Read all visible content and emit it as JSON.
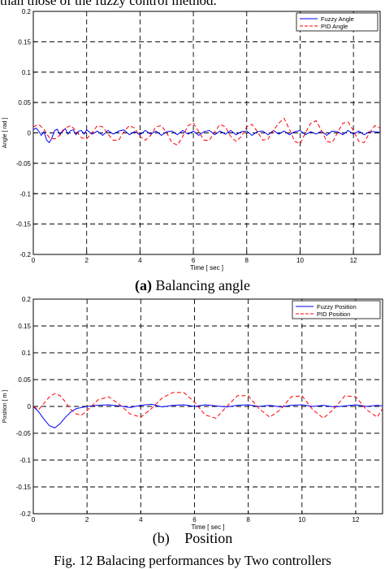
{
  "page": {
    "intro_text": "than those of the fuzzy control method.",
    "figure_caption": "Fig. 12 Balacing performances by Two controllers"
  },
  "colors": {
    "fuzzy": "#0000ff",
    "pid": "#ff0000",
    "grid": "#000000"
  },
  "chart_data": [
    {
      "type": "line",
      "caption_label": "(a)",
      "caption_text": "Balancing angle",
      "xlabel": "Time [ sec ]",
      "ylabel": "Angle [ rad ]",
      "xlim": [
        0,
        13
      ],
      "ylim": [
        -0.2,
        0.2
      ],
      "xticks": [
        0,
        2,
        4,
        6,
        8,
        10,
        12
      ],
      "yticks": [
        0.2,
        0.15,
        0.1,
        0.05,
        0,
        -0.05,
        -0.1,
        -0.15,
        -0.2
      ],
      "ytick_labels": [
        "0.2",
        "0.15",
        "0.1",
        "0.05",
        "0",
        "-0.05",
        "-0.1",
        "-0.15",
        "-0.2"
      ],
      "grid": true,
      "legend_position": "top-right",
      "series": [
        {
          "name": "Fuzzy Angle",
          "style": "solid",
          "x": [
            0,
            0.1,
            0.2,
            0.3,
            0.4,
            0.5,
            0.6,
            0.7,
            0.8,
            0.9,
            1.0,
            1.1,
            1.2,
            1.3,
            1.4,
            1.5,
            1.6,
            1.7,
            1.8,
            1.9,
            2.0,
            2.2,
            2.4,
            2.6,
            2.8,
            3.0,
            3.2,
            3.4,
            3.6,
            3.8,
            4.0,
            4.2,
            4.4,
            4.6,
            4.8,
            5.0,
            5.2,
            5.4,
            5.6,
            5.8,
            6.0,
            6.2,
            6.4,
            6.6,
            6.8,
            7.0,
            7.2,
            7.4,
            7.6,
            7.8,
            8.0,
            8.2,
            8.4,
            8.6,
            8.8,
            9.0,
            9.2,
            9.4,
            9.6,
            9.8,
            10.0,
            10.2,
            10.4,
            10.6,
            10.8,
            11.0,
            11.2,
            11.4,
            11.6,
            11.8,
            12.0,
            12.2,
            12.4,
            12.6,
            12.8,
            13.0
          ],
          "y": [
            0.005,
            0.008,
            0.003,
            -0.004,
            0.002,
            -0.012,
            -0.016,
            -0.008,
            0.004,
            0.006,
            -0.003,
            0.004,
            0.007,
            -0.002,
            0.004,
            0.005,
            -0.003,
            0.003,
            0.004,
            -0.002,
            0.005,
            -0.002,
            0.003,
            -0.004,
            0.004,
            -0.002,
            0.003,
            0.005,
            -0.003,
            0.002,
            -0.003,
            0.004,
            -0.002,
            0.003,
            -0.004,
            0.002,
            0.003,
            -0.003,
            0.004,
            -0.002,
            0.003,
            -0.004,
            0.002,
            0.004,
            -0.003,
            0.003,
            -0.002,
            0.004,
            -0.003,
            0.002,
            0.003,
            -0.004,
            0.002,
            0.003,
            -0.003,
            0.004,
            -0.002,
            0.003,
            -0.003,
            0.002,
            0.004,
            -0.003,
            0.002,
            -0.002,
            0.003,
            -0.004,
            0.003,
            0.002,
            -0.003,
            0.004,
            -0.002,
            0.003,
            -0.003,
            0.002,
            0.002,
            0.001
          ]
        },
        {
          "name": "PID Angle",
          "style": "dashed",
          "x": [
            0,
            0.2,
            0.4,
            0.6,
            0.8,
            1.0,
            1.2,
            1.4,
            1.6,
            1.8,
            2.0,
            2.2,
            2.4,
            2.6,
            2.8,
            3.0,
            3.2,
            3.4,
            3.6,
            3.8,
            4.0,
            4.2,
            4.4,
            4.6,
            4.8,
            5.0,
            5.2,
            5.4,
            5.6,
            5.8,
            6.0,
            6.2,
            6.4,
            6.6,
            6.8,
            7.0,
            7.2,
            7.4,
            7.6,
            7.8,
            8.0,
            8.2,
            8.4,
            8.6,
            8.8,
            9.0,
            9.2,
            9.4,
            9.6,
            9.8,
            10.0,
            10.2,
            10.4,
            10.6,
            10.8,
            11.0,
            11.2,
            11.4,
            11.6,
            11.8,
            12.0,
            12.2,
            12.4,
            12.6,
            12.8,
            13.0
          ],
          "y": [
            0.01,
            0.014,
            0.006,
            -0.008,
            -0.01,
            -0.004,
            0.008,
            0.012,
            0.004,
            -0.008,
            -0.01,
            0.0,
            0.012,
            0.01,
            -0.002,
            -0.012,
            -0.012,
            0.002,
            0.012,
            0.008,
            -0.006,
            -0.012,
            -0.004,
            0.01,
            0.012,
            0.0,
            -0.016,
            -0.02,
            -0.006,
            0.012,
            0.016,
            0.002,
            -0.012,
            -0.012,
            0.002,
            0.014,
            0.01,
            -0.006,
            -0.014,
            -0.006,
            0.01,
            0.014,
            0.002,
            -0.012,
            -0.01,
            0.004,
            0.016,
            0.024,
            0.006,
            -0.014,
            -0.018,
            0.0,
            0.016,
            0.02,
            0.004,
            -0.014,
            -0.016,
            0.0,
            0.016,
            0.018,
            0.004,
            -0.014,
            -0.016,
            0.0,
            0.012,
            0.008
          ]
        }
      ]
    },
    {
      "type": "line",
      "caption_label": "(b)",
      "caption_text": "Position",
      "xlabel": "Time [ sec ]",
      "ylabel": "Position [ m ]",
      "xlim": [
        0,
        13
      ],
      "ylim": [
        -0.2,
        0.2
      ],
      "xticks": [
        0,
        2,
        4,
        6,
        8,
        10,
        12
      ],
      "yticks": [
        0.2,
        0.15,
        0.1,
        0.05,
        0,
        -0.05,
        -0.1,
        -0.15,
        -0.2
      ],
      "ytick_labels": [
        "0.2",
        "0.15",
        "0.1",
        "0.05",
        "0",
        "-0.05",
        "-0.1",
        "-0.15",
        "-0.2"
      ],
      "grid": true,
      "legend_position": "top-right",
      "series": [
        {
          "name": "Fuzzy Position",
          "style": "solid",
          "x": [
            0,
            0.2,
            0.4,
            0.6,
            0.8,
            1.0,
            1.2,
            1.4,
            1.6,
            1.8,
            2.0,
            2.4,
            2.8,
            3.2,
            3.6,
            4.0,
            4.4,
            4.8,
            5.2,
            5.6,
            6.0,
            6.4,
            6.8,
            7.2,
            7.6,
            8.0,
            8.4,
            8.8,
            9.2,
            9.6,
            10.0,
            10.4,
            10.8,
            11.2,
            11.6,
            12.0,
            12.4,
            12.8,
            13.0
          ],
          "y": [
            0,
            -0.01,
            -0.024,
            -0.036,
            -0.04,
            -0.032,
            -0.02,
            -0.01,
            -0.004,
            -0.002,
            0.0,
            0.002,
            0.003,
            0.001,
            -0.002,
            0.002,
            0.004,
            -0.001,
            0.002,
            0.003,
            0.0,
            0.003,
            0.001,
            -0.001,
            0.002,
            0.003,
            0.0,
            0.002,
            -0.001,
            0.002,
            0.003,
            0.0,
            0.002,
            -0.001,
            0.001,
            0.003,
            0.0,
            0.002,
            0.001
          ]
        },
        {
          "name": "PID Position",
          "style": "dashed",
          "x": [
            0,
            0.2,
            0.4,
            0.6,
            0.8,
            1.0,
            1.2,
            1.4,
            1.6,
            1.8,
            2.0,
            2.4,
            2.8,
            3.2,
            3.6,
            4.0,
            4.4,
            4.8,
            5.2,
            5.6,
            6.0,
            6.4,
            6.8,
            7.2,
            7.6,
            8.0,
            8.4,
            8.8,
            9.2,
            9.6,
            10.0,
            10.4,
            10.8,
            11.2,
            11.6,
            12.0,
            12.4,
            12.8,
            13.0
          ],
          "y": [
            0,
            -0.006,
            0.006,
            0.018,
            0.024,
            0.02,
            0.008,
            -0.006,
            -0.014,
            -0.016,
            -0.008,
            0.012,
            0.018,
            0.004,
            -0.014,
            -0.02,
            -0.004,
            0.016,
            0.026,
            0.026,
            0.008,
            -0.016,
            -0.022,
            0.0,
            0.02,
            0.02,
            -0.004,
            -0.02,
            -0.006,
            0.018,
            0.02,
            -0.006,
            -0.022,
            -0.004,
            0.02,
            0.018,
            -0.006,
            -0.02,
            -0.004
          ]
        }
      ]
    }
  ]
}
